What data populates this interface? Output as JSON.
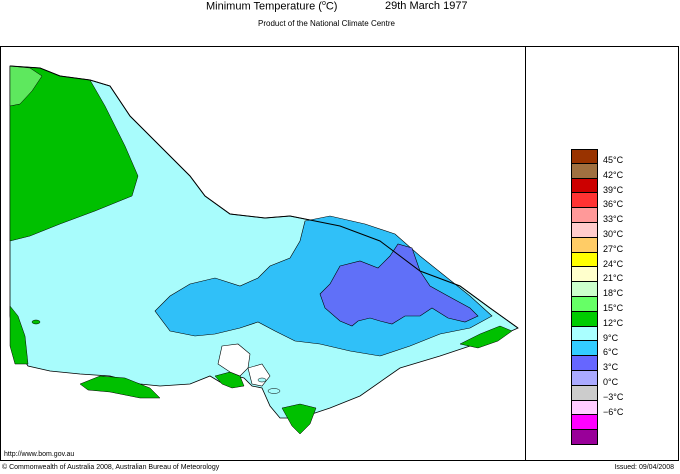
{
  "header": {
    "title_prefix": "Minimum Temperature (",
    "title_unit_sup": "o",
    "title_suffix": "C)",
    "date": "29th March 1977",
    "subtitle": "Product of the National Climate Centre"
  },
  "footer": {
    "url": "http://www.bom.gov.au",
    "copyright": "© Commonwealth of Australia 2008, Australian Bureau of Meteorology",
    "issued": "Issued: 09/04/2008"
  },
  "map": {
    "region": "Victoria",
    "colors": {
      "ocean": "#ffffff",
      "band_15": "#00c000",
      "band_18": "#5ee85e",
      "band_12": "#a8fcfc",
      "band_9": "#30c0f8",
      "band_6": "#6070f8"
    }
  },
  "legend": {
    "items": [
      {
        "label": "45°C",
        "color": "#993300"
      },
      {
        "label": "42°C",
        "color": "#a07040"
      },
      {
        "label": "39°C",
        "color": "#cc0000"
      },
      {
        "label": "36°C",
        "color": "#ff3333"
      },
      {
        "label": "33°C",
        "color": "#ff9999"
      },
      {
        "label": "30°C",
        "color": "#ffcccc"
      },
      {
        "label": "27°C",
        "color": "#ffcc66"
      },
      {
        "label": "24°C",
        "color": "#ffff00"
      },
      {
        "label": "21°C",
        "color": "#ffffcc"
      },
      {
        "label": "18°C",
        "color": "#ccffcc"
      },
      {
        "label": "15°C",
        "color": "#66ff66"
      },
      {
        "label": "12°C",
        "color": "#00cc00"
      },
      {
        "label": "9°C",
        "color": "#aaffff"
      },
      {
        "label": "6°C",
        "color": "#33ccff"
      },
      {
        "label": "3°C",
        "color": "#6666ff"
      },
      {
        "label": "0°C",
        "color": "#aaaaff"
      },
      {
        "label": "−3°C",
        "color": "#cccccc"
      },
      {
        "label": "−6°C",
        "color": "#ffccff"
      },
      {
        "label": "",
        "color": "#ff00ff"
      },
      {
        "label": "",
        "color": "#990099"
      }
    ]
  }
}
